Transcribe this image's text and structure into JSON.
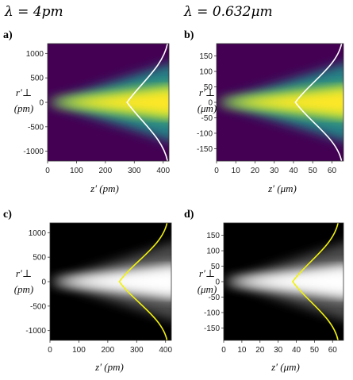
{
  "headers": {
    "left": "λ = 4pm",
    "right": "λ = 0.632μm"
  },
  "colors": {
    "viridis_low": "#440154",
    "viridis_high": "#fde725",
    "white_curve": "#ffffff",
    "yellow_curve": "#f2f20a",
    "gray_low": "#000000",
    "gray_high": "#ffffff"
  },
  "chart_data": [
    {
      "panel": "a)",
      "type": "heatmap",
      "colormap": "viridis",
      "xlabel": "z′ (pm)",
      "ylabel": "r′⊥ (pm)",
      "xlim": [
        0,
        420
      ],
      "ylim": [
        -1200,
        1200
      ],
      "xticks": [
        0,
        100,
        200,
        300,
        400
      ],
      "yticks": [
        1000,
        500,
        0,
        -500,
        -1000
      ],
      "beam_waist_z": 0,
      "curve": {
        "color": "white",
        "vertex_z": 275,
        "edge_z": 415,
        "r_extent": 1200
      }
    },
    {
      "panel": "b)",
      "type": "heatmap",
      "colormap": "viridis",
      "xlabel": "z′ (μm)",
      "ylabel": "r′⊥ (μm)",
      "xlim": [
        0,
        66
      ],
      "ylim": [
        -190,
        190
      ],
      "xticks": [
        0,
        10,
        20,
        30,
        40,
        50,
        60
      ],
      "yticks": [
        150,
        100,
        50,
        0,
        -50,
        -100,
        -150
      ],
      "beam_waist_z": 0,
      "curve": {
        "color": "white",
        "vertex_z": 41,
        "edge_z": 65,
        "r_extent": 190
      }
    },
    {
      "panel": "c)",
      "type": "heatmap",
      "colormap": "gray",
      "xlabel": "z′ (pm)",
      "ylabel": "r′⊥ (pm)",
      "xlim": [
        0,
        420
      ],
      "ylim": [
        -1200,
        1200
      ],
      "xticks": [
        0,
        100,
        200,
        300,
        400
      ],
      "yticks": [
        1000,
        500,
        0,
        -500,
        -1000
      ],
      "beam_waist_z": 0,
      "curve": {
        "color": "yellow",
        "vertex_z": 240,
        "edge_z": 405,
        "r_extent": 1200
      }
    },
    {
      "panel": "d)",
      "type": "heatmap",
      "colormap": "gray",
      "xlabel": "z′ (μm)",
      "ylabel": "r′⊥ (μm)",
      "xlim": [
        0,
        66
      ],
      "ylim": [
        -190,
        190
      ],
      "xticks": [
        0,
        10,
        20,
        30,
        40,
        50,
        60
      ],
      "yticks": [
        150,
        100,
        50,
        0,
        -50,
        -100,
        -150
      ],
      "beam_waist_z": 0,
      "curve": {
        "color": "yellow",
        "vertex_z": 38,
        "edge_z": 63,
        "r_extent": 190
      }
    }
  ]
}
